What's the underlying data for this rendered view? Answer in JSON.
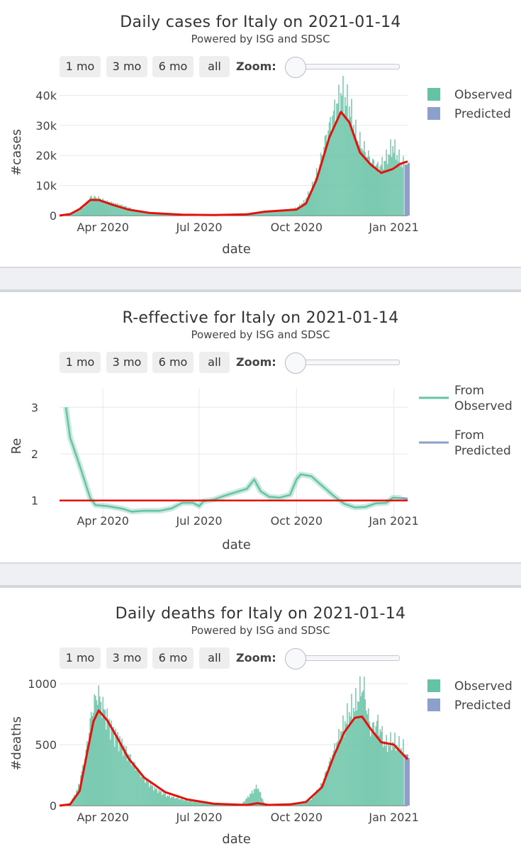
{
  "controls": {
    "buttons": [
      "1 mo",
      "3 mo",
      "6 mo",
      "all"
    ],
    "zoom_label": "Zoom:"
  },
  "chart_data": [
    {
      "id": "cases",
      "type": "bar",
      "title": "Daily cases for Italy on 2021-01-14",
      "subtitle": "Powered by ISG and SDSC",
      "xlabel": "date",
      "ylabel": "#cases",
      "x_ticks": [
        "Apr 2020",
        "Jul 2020",
        "Oct 2020",
        "Jan 2021"
      ],
      "y_ticks": [
        "0",
        "10k",
        "20k",
        "30k",
        "40k"
      ],
      "ylim": [
        0,
        42000
      ],
      "legend": [
        "Observed",
        "Predicted"
      ],
      "colors": {
        "observed": "#66c2a5",
        "predicted": "#8da0cb",
        "fit": "#e3120b"
      },
      "observed_daily": [
        [
          "2020-02-24",
          80
        ],
        [
          "2020-03-01",
          500
        ],
        [
          "2020-03-08",
          1400
        ],
        [
          "2020-03-15",
          3400
        ],
        [
          "2020-03-21",
          6300
        ],
        [
          "2020-03-28",
          5800
        ],
        [
          "2020-04-04",
          4700
        ],
        [
          "2020-04-11",
          4000
        ],
        [
          "2020-04-18",
          3400
        ],
        [
          "2020-04-25",
          2700
        ],
        [
          "2020-05-03",
          1600
        ],
        [
          "2020-05-15",
          800
        ],
        [
          "2020-06-01",
          400
        ],
        [
          "2020-07-01",
          200
        ],
        [
          "2020-08-01",
          300
        ],
        [
          "2020-08-20",
          900
        ],
        [
          "2020-09-01",
          1300
        ],
        [
          "2020-09-15",
          1500
        ],
        [
          "2020-10-01",
          2500
        ],
        [
          "2020-10-08",
          4500
        ],
        [
          "2020-10-15",
          8800
        ],
        [
          "2020-10-22",
          16000
        ],
        [
          "2020-10-29",
          26000
        ],
        [
          "2020-11-05",
          34000
        ],
        [
          "2020-11-13",
          40900
        ],
        [
          "2020-11-20",
          36000
        ],
        [
          "2020-11-27",
          26000
        ],
        [
          "2020-12-04",
          22000
        ],
        [
          "2020-12-11",
          18000
        ],
        [
          "2020-12-18",
          16000
        ],
        [
          "2020-12-25",
          19000
        ],
        [
          "2020-12-31",
          23000
        ],
        [
          "2021-01-07",
          18000
        ],
        [
          "2021-01-10",
          17000
        ]
      ],
      "predicted_daily": [
        [
          "2021-01-11",
          17000
        ],
        [
          "2021-01-14",
          17500
        ]
      ],
      "fit_line": [
        [
          "2020-02-20",
          0
        ],
        [
          "2020-03-01",
          500
        ],
        [
          "2020-03-10",
          2200
        ],
        [
          "2020-03-20",
          5200
        ],
        [
          "2020-03-28",
          5200
        ],
        [
          "2020-04-10",
          3600
        ],
        [
          "2020-04-25",
          2000
        ],
        [
          "2020-05-15",
          900
        ],
        [
          "2020-06-15",
          300
        ],
        [
          "2020-07-15",
          200
        ],
        [
          "2020-08-15",
          400
        ],
        [
          "2020-09-01",
          1300
        ],
        [
          "2020-10-01",
          2000
        ],
        [
          "2020-10-10",
          4000
        ],
        [
          "2020-10-20",
          12000
        ],
        [
          "2020-11-01",
          26000
        ],
        [
          "2020-11-12",
          34500
        ],
        [
          "2020-11-20",
          31000
        ],
        [
          "2020-11-30",
          21000
        ],
        [
          "2020-12-10",
          17000
        ],
        [
          "2020-12-20",
          14200
        ],
        [
          "2020-12-31",
          15500
        ],
        [
          "2021-01-07",
          17200
        ],
        [
          "2021-01-14",
          18000
        ]
      ]
    },
    {
      "id": "re",
      "type": "line",
      "title": "R-effective for Italy on 2021-01-14",
      "subtitle": "Powered by ISG and SDSC",
      "xlabel": "date",
      "ylabel": "Re",
      "x_ticks": [
        "Apr 2020",
        "Jul 2020",
        "Oct 2020",
        "Jan 2021"
      ],
      "y_ticks": [
        "1",
        "2",
        "3"
      ],
      "ylim": [
        0.6,
        3.4
      ],
      "legend": [
        "From Observed",
        "From Predicted"
      ],
      "colors": {
        "observed": "#66c2a5",
        "predicted": "#8da0cb",
        "threshold": "#e3120b"
      },
      "threshold": 1,
      "observed_series": [
        [
          "2020-02-26",
          3.0
        ],
        [
          "2020-03-01",
          2.35
        ],
        [
          "2020-03-10",
          1.75
        ],
        [
          "2020-03-20",
          1.05
        ],
        [
          "2020-03-25",
          0.9
        ],
        [
          "2020-04-05",
          0.88
        ],
        [
          "2020-04-20",
          0.82
        ],
        [
          "2020-04-28",
          0.76
        ],
        [
          "2020-05-10",
          0.78
        ],
        [
          "2020-05-25",
          0.78
        ],
        [
          "2020-06-05",
          0.83
        ],
        [
          "2020-06-15",
          0.95
        ],
        [
          "2020-06-25",
          0.95
        ],
        [
          "2020-07-01",
          0.88
        ],
        [
          "2020-07-05",
          0.98
        ],
        [
          "2020-07-15",
          1.02
        ],
        [
          "2020-07-25",
          1.1
        ],
        [
          "2020-08-05",
          1.18
        ],
        [
          "2020-08-15",
          1.25
        ],
        [
          "2020-08-22",
          1.45
        ],
        [
          "2020-08-28",
          1.2
        ],
        [
          "2020-09-05",
          1.08
        ],
        [
          "2020-09-15",
          1.06
        ],
        [
          "2020-09-25",
          1.12
        ],
        [
          "2020-10-01",
          1.45
        ],
        [
          "2020-10-05",
          1.56
        ],
        [
          "2020-10-15",
          1.52
        ],
        [
          "2020-10-25",
          1.32
        ],
        [
          "2020-11-05",
          1.1
        ],
        [
          "2020-11-15",
          0.93
        ],
        [
          "2020-11-25",
          0.85
        ],
        [
          "2020-12-05",
          0.86
        ],
        [
          "2020-12-15",
          0.94
        ],
        [
          "2020-12-25",
          0.95
        ],
        [
          "2020-12-31",
          1.06
        ],
        [
          "2021-01-08",
          1.05
        ]
      ],
      "predicted_series": [
        [
          "2021-01-08",
          1.05
        ],
        [
          "2021-01-14",
          1.04
        ]
      ]
    },
    {
      "id": "deaths",
      "type": "bar",
      "title": "Daily deaths for Italy on 2021-01-14",
      "subtitle": "Powered by ISG and SDSC",
      "xlabel": "date",
      "ylabel": "#deaths",
      "x_ticks": [
        "Apr 2020",
        "Jul 2020",
        "Oct 2020",
        "Jan 2021"
      ],
      "y_ticks": [
        "0",
        "500",
        "1000"
      ],
      "ylim": [
        0,
        1020
      ],
      "legend": [
        "Observed",
        "Predicted"
      ],
      "colors": {
        "observed": "#66c2a5",
        "predicted": "#8da0cb",
        "fit": "#e3120b"
      },
      "observed_daily": [
        [
          "2020-02-24",
          5
        ],
        [
          "2020-03-01",
          20
        ],
        [
          "2020-03-08",
          130
        ],
        [
          "2020-03-15",
          380
        ],
        [
          "2020-03-22",
          790
        ],
        [
          "2020-03-27",
          920
        ],
        [
          "2020-04-03",
          760
        ],
        [
          "2020-04-10",
          610
        ],
        [
          "2020-04-17",
          530
        ],
        [
          "2020-04-24",
          430
        ],
        [
          "2020-05-01",
          330
        ],
        [
          "2020-05-10",
          220
        ],
        [
          "2020-05-20",
          140
        ],
        [
          "2020-06-01",
          80
        ],
        [
          "2020-06-20",
          40
        ],
        [
          "2020-07-15",
          15
        ],
        [
          "2020-08-10",
          10
        ],
        [
          "2020-08-25",
          160
        ],
        [
          "2020-09-01",
          10
        ],
        [
          "2020-09-20",
          15
        ],
        [
          "2020-10-05",
          25
        ],
        [
          "2020-10-15",
          50
        ],
        [
          "2020-10-25",
          180
        ],
        [
          "2020-11-05",
          440
        ],
        [
          "2020-11-12",
          600
        ],
        [
          "2020-11-20",
          760
        ],
        [
          "2020-11-26",
          830
        ],
        [
          "2020-12-03",
          993
        ],
        [
          "2020-12-10",
          620
        ],
        [
          "2020-12-17",
          680
        ],
        [
          "2020-12-24",
          500
        ],
        [
          "2020-12-31",
          520
        ],
        [
          "2021-01-07",
          480
        ],
        [
          "2021-01-10",
          470
        ]
      ],
      "predicted_daily": [
        [
          "2021-01-11",
          420
        ],
        [
          "2021-01-14",
          390
        ]
      ],
      "fit_line": [
        [
          "2020-02-20",
          0
        ],
        [
          "2020-03-01",
          10
        ],
        [
          "2020-03-10",
          120
        ],
        [
          "2020-03-17",
          430
        ],
        [
          "2020-03-23",
          690
        ],
        [
          "2020-03-28",
          780
        ],
        [
          "2020-04-05",
          700
        ],
        [
          "2020-04-15",
          550
        ],
        [
          "2020-04-25",
          390
        ],
        [
          "2020-05-10",
          230
        ],
        [
          "2020-05-30",
          110
        ],
        [
          "2020-06-20",
          50
        ],
        [
          "2020-07-15",
          15
        ],
        [
          "2020-08-15",
          5
        ],
        [
          "2020-08-25",
          20
        ],
        [
          "2020-09-05",
          5
        ],
        [
          "2020-09-25",
          10
        ],
        [
          "2020-10-10",
          30
        ],
        [
          "2020-10-25",
          150
        ],
        [
          "2020-11-05",
          400
        ],
        [
          "2020-11-15",
          600
        ],
        [
          "2020-11-25",
          720
        ],
        [
          "2020-12-02",
          730
        ],
        [
          "2020-12-10",
          630
        ],
        [
          "2020-12-20",
          520
        ],
        [
          "2021-01-01",
          500
        ],
        [
          "2021-01-14",
          380
        ]
      ]
    }
  ]
}
